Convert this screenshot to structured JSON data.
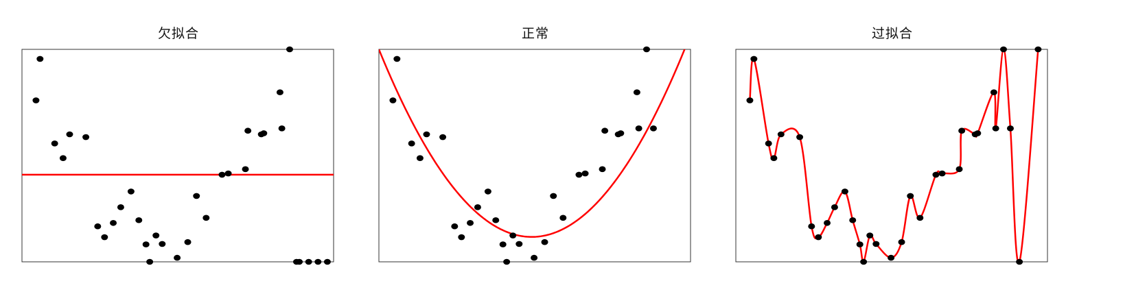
{
  "colors": {
    "curve": "#ff0000",
    "point": "#000000",
    "frame": "#333333"
  },
  "chart_data": [
    {
      "type": "scatter",
      "title": "欠拟合",
      "xlim": [
        0,
        1
      ],
      "ylim": [
        0,
        1
      ],
      "grid": false,
      "fit_kind": "constant",
      "fit_value": 0.41,
      "points": {
        "x": [
          0.045,
          0.058,
          0.105,
          0.132,
          0.153,
          0.205,
          0.243,
          0.265,
          0.293,
          0.317,
          0.35,
          0.375,
          0.398,
          0.41,
          0.43,
          0.45,
          0.498,
          0.532,
          0.56,
          0.591,
          0.642,
          0.662,
          0.717,
          0.725,
          0.768,
          0.776,
          0.828,
          0.834,
          0.859,
          0.881,
          0.89,
          0.92,
          0.95,
          0.98
        ],
        "y": [
          0.76,
          0.955,
          0.557,
          0.488,
          0.6,
          0.587,
          0.167,
          0.116,
          0.183,
          0.257,
          0.331,
          0.196,
          0.082,
          0.0,
          0.124,
          0.084,
          0.019,
          0.093,
          0.31,
          0.207,
          0.41,
          0.416,
          0.436,
          0.617,
          0.6,
          0.605,
          0.798,
          0.628,
          1.0,
          0.0,
          0.0,
          0.0,
          0.0,
          0.0
        ]
      }
    },
    {
      "type": "scatter",
      "title": "正常",
      "xlim": [
        0,
        1
      ],
      "ylim": [
        0,
        1
      ],
      "grid": false,
      "fit_kind": "quadratic",
      "fit_coeffs": [
        1.0,
        -3.6,
        3.67
      ],
      "points": {
        "x": [
          0.045,
          0.058,
          0.105,
          0.132,
          0.153,
          0.205,
          0.243,
          0.265,
          0.293,
          0.317,
          0.35,
          0.375,
          0.398,
          0.41,
          0.43,
          0.45,
          0.498,
          0.532,
          0.56,
          0.591,
          0.642,
          0.662,
          0.717,
          0.725,
          0.768,
          0.776,
          0.828,
          0.834,
          0.859,
          0.881
        ],
        "y": [
          0.76,
          0.955,
          0.557,
          0.488,
          0.6,
          0.587,
          0.167,
          0.116,
          0.183,
          0.257,
          0.331,
          0.196,
          0.082,
          0.0,
          0.124,
          0.084,
          0.019,
          0.093,
          0.31,
          0.207,
          0.41,
          0.416,
          0.436,
          0.617,
          0.6,
          0.605,
          0.798,
          0.628,
          1.0,
          0.628
        ]
      }
    },
    {
      "type": "line",
      "title": "过拟合",
      "xlim": [
        0,
        1
      ],
      "ylim": [
        0,
        1
      ],
      "grid": false,
      "fit_kind": "interpolating",
      "points": {
        "x": [
          0.045,
          0.058,
          0.105,
          0.122,
          0.145,
          0.205,
          0.243,
          0.265,
          0.293,
          0.317,
          0.35,
          0.375,
          0.398,
          0.41,
          0.43,
          0.45,
          0.498,
          0.532,
          0.56,
          0.591,
          0.642,
          0.662,
          0.717,
          0.725,
          0.768,
          0.776,
          0.828,
          0.834,
          0.859,
          0.881,
          0.91,
          0.97
        ],
        "y": [
          0.76,
          0.955,
          0.557,
          0.488,
          0.6,
          0.587,
          0.167,
          0.116,
          0.183,
          0.257,
          0.331,
          0.196,
          0.082,
          0.0,
          0.124,
          0.084,
          0.019,
          0.093,
          0.31,
          0.207,
          0.41,
          0.416,
          0.436,
          0.617,
          0.6,
          0.605,
          0.798,
          0.628,
          1.0,
          0.628,
          0.0,
          1.0
        ]
      }
    }
  ]
}
